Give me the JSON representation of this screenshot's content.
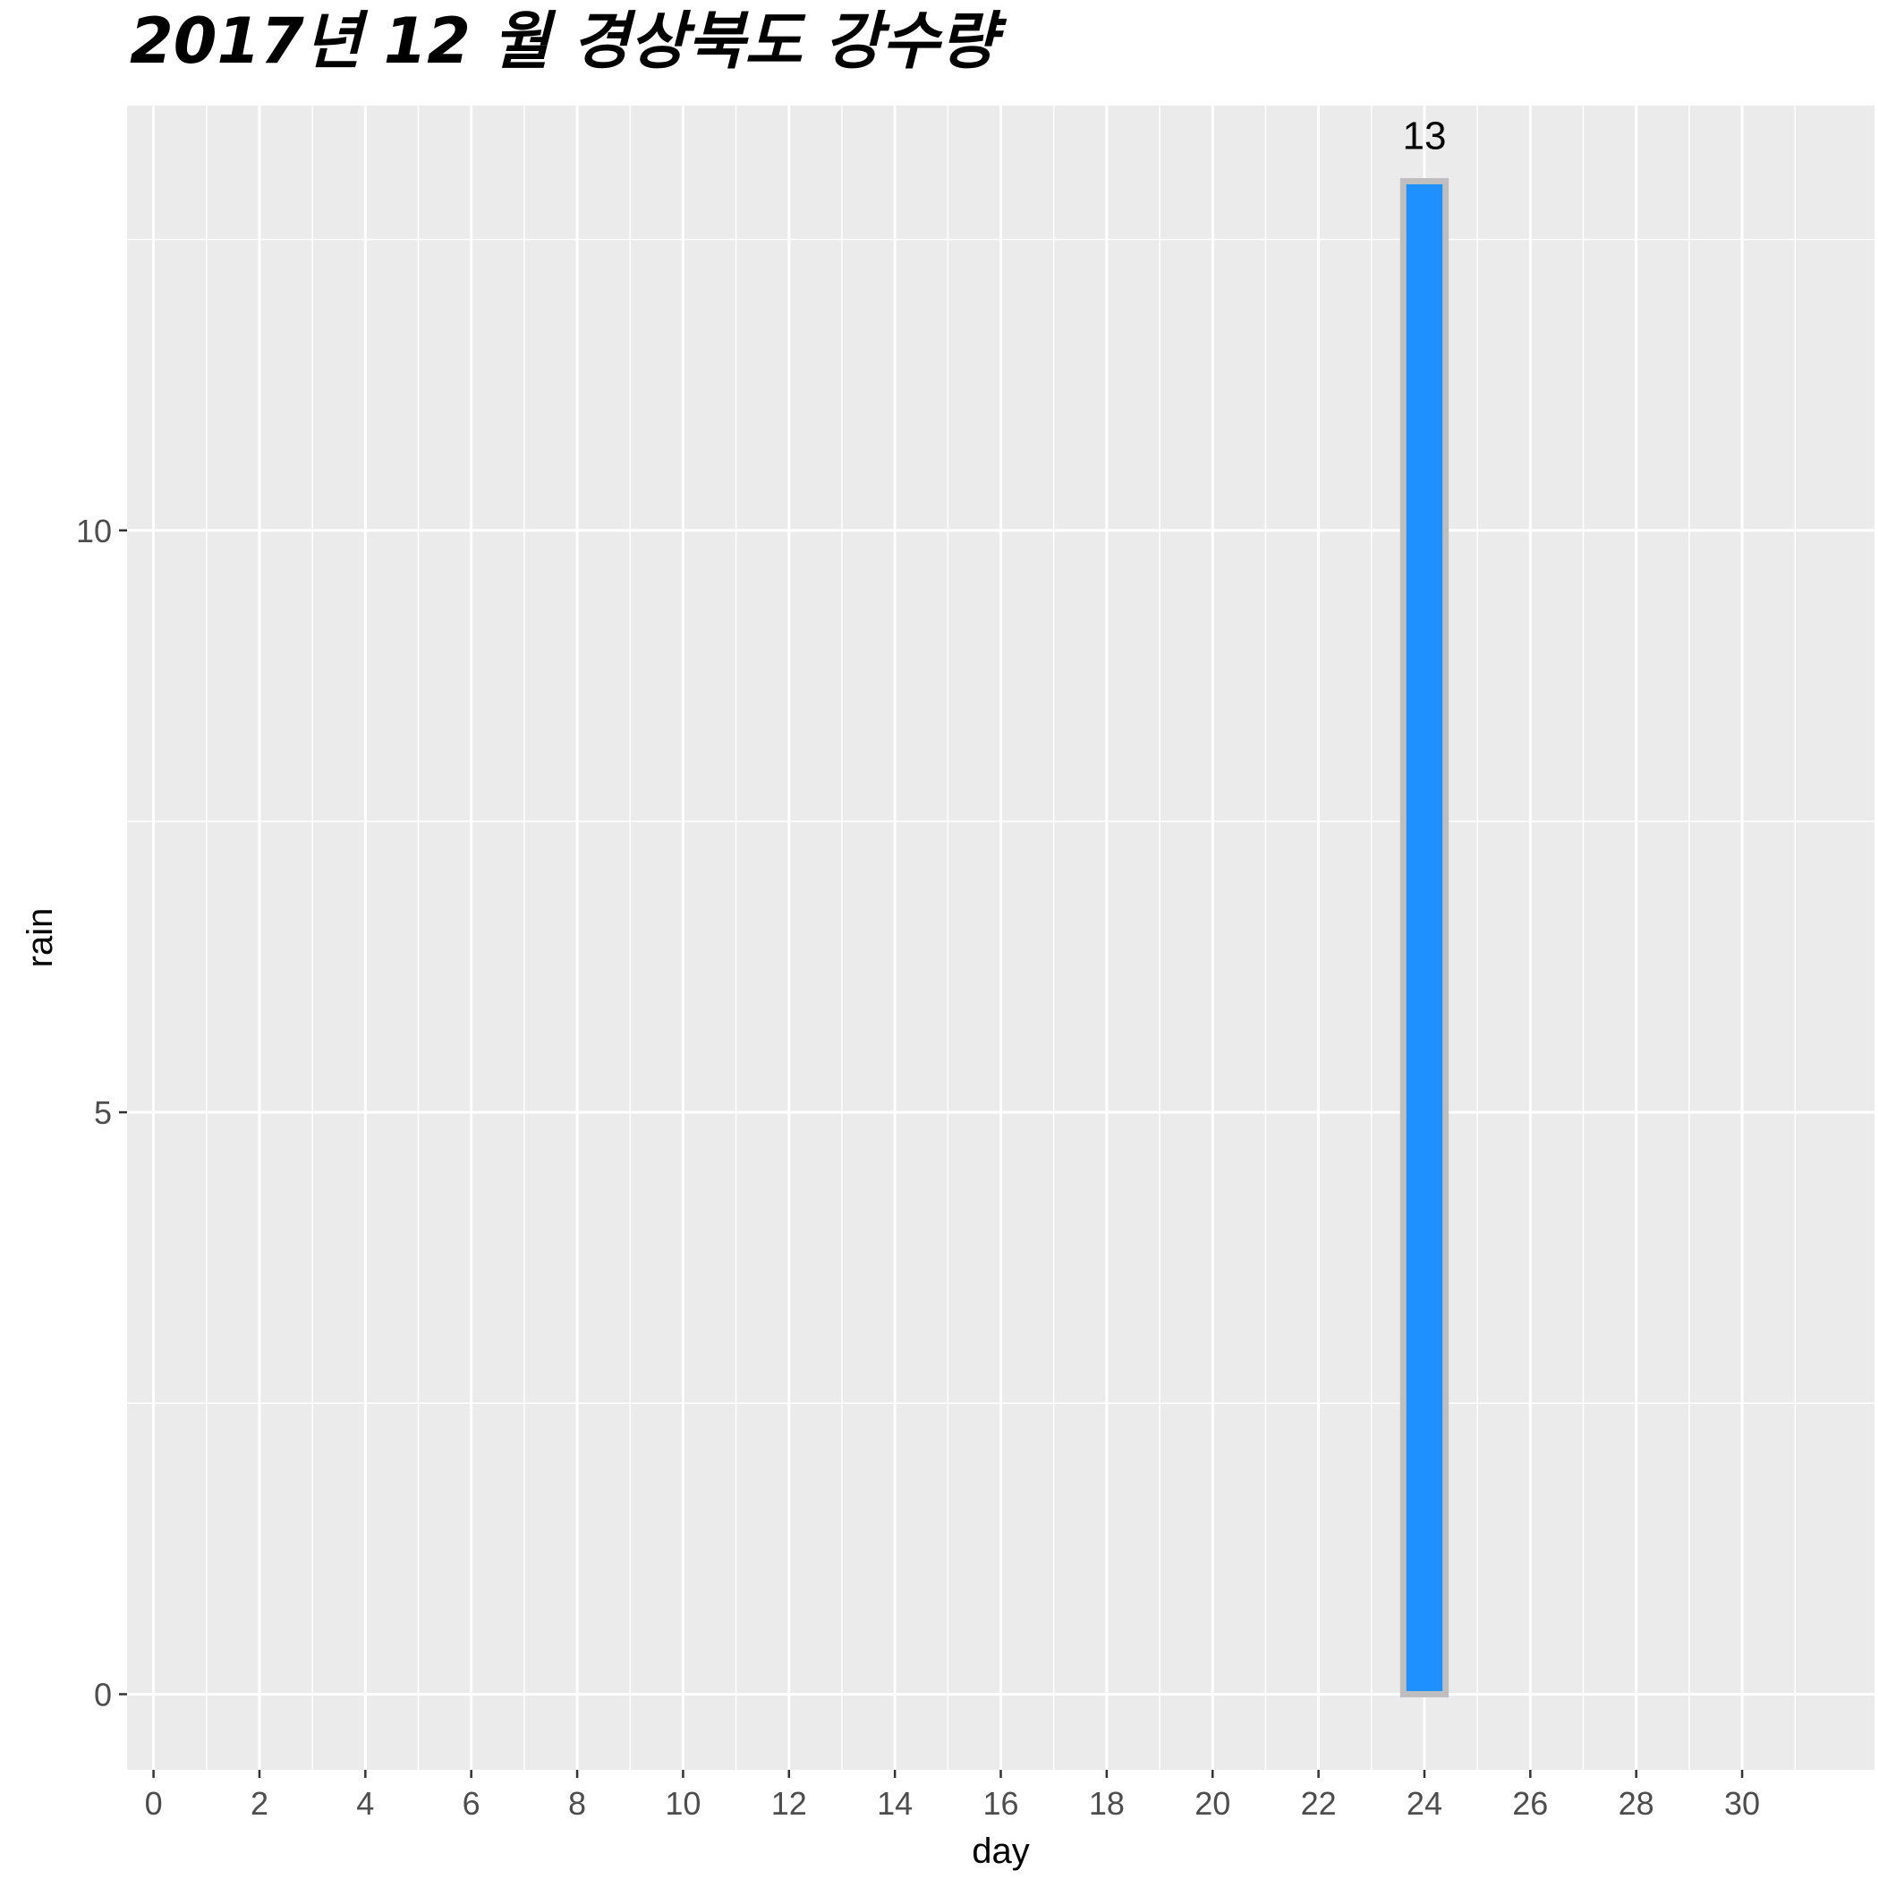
{
  "chart_data": {
    "type": "bar",
    "title": "2017년 12 월 경상북도 강수량",
    "xlabel": "day",
    "ylabel": "rain",
    "x": [
      24
    ],
    "values": [
      13
    ],
    "data_labels": [
      "13"
    ],
    "xlim": [
      -0.5,
      32.5
    ],
    "ylim": [
      -0.65,
      13.65
    ],
    "x_ticks": [
      0,
      2,
      4,
      6,
      8,
      10,
      12,
      14,
      16,
      18,
      20,
      22,
      24,
      26,
      28,
      30
    ],
    "y_ticks": [
      0,
      5,
      10
    ],
    "bar_fill": "#1E90FF",
    "bar_outline": "#BEBEBE",
    "panel_background": "#EBEBEB",
    "grid_color": "#FFFFFF",
    "grid": true,
    "legend": "none"
  }
}
